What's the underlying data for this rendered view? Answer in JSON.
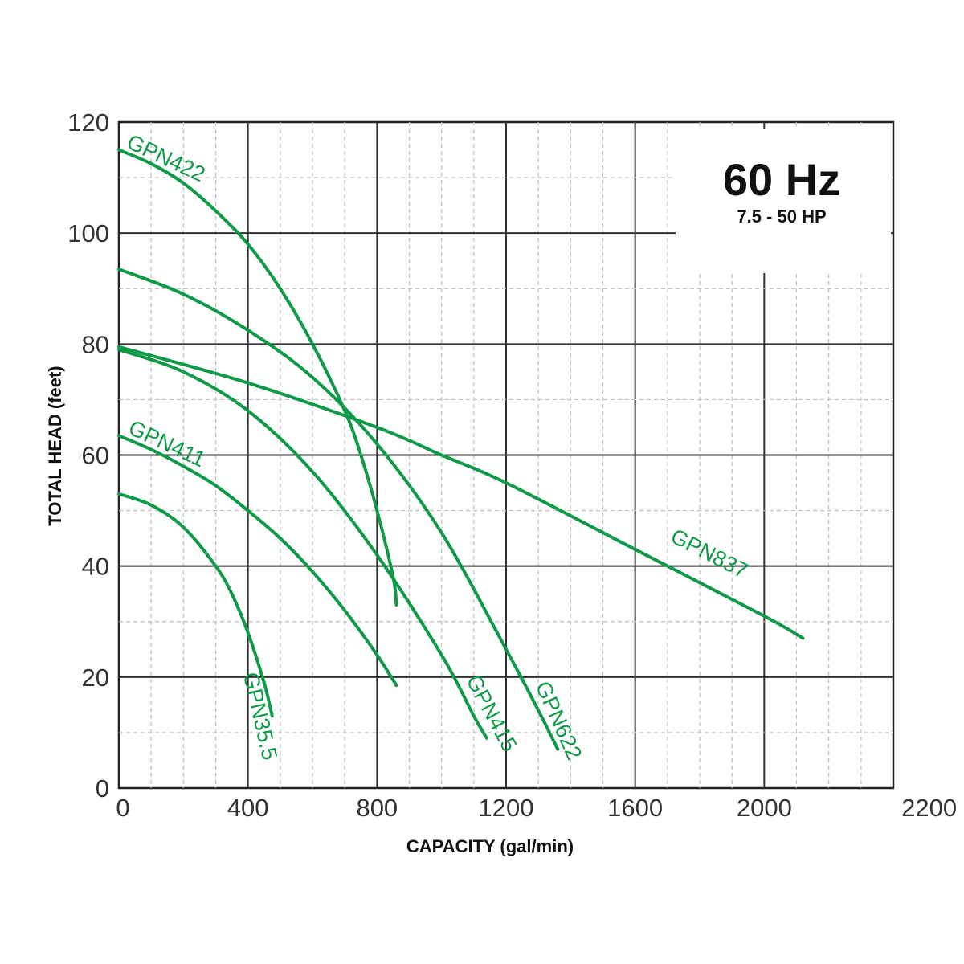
{
  "chart_data": {
    "type": "line",
    "title": "",
    "xlabel": "CAPACITY (gal/min)",
    "ylabel": "TOTAL HEAD (feet)",
    "xlim": [
      0,
      2400
    ],
    "ylim": [
      0,
      120
    ],
    "x_ticks": [
      0,
      400,
      800,
      1200,
      1600,
      2000,
      2200
    ],
    "y_ticks": [
      0,
      20,
      40,
      60,
      80,
      100,
      120
    ],
    "grid": true,
    "badge": {
      "frequency": "60 Hz",
      "power_range": "7.5 - 50 HP"
    },
    "line_color": "#0f9a48",
    "series": [
      {
        "name": "GPN35.5",
        "x": [
          0,
          100,
          200,
          300,
          350,
          400,
          450,
          475
        ],
        "y": [
          53,
          51,
          47,
          40,
          35,
          28,
          19,
          13
        ]
      },
      {
        "name": "GPN411",
        "x": [
          0,
          100,
          200,
          300,
          400,
          500,
          600,
          700,
          800,
          860
        ],
        "y": [
          63.5,
          61,
          58,
          54.5,
          50,
          45,
          39,
          32,
          24,
          18.5
        ]
      },
      {
        "name": "GPN415",
        "x": [
          0,
          200,
          400,
          600,
          800,
          1000,
          1100,
          1140
        ],
        "y": [
          79,
          75,
          68,
          57,
          42,
          24,
          13,
          9
        ]
      },
      {
        "name": "GPN422",
        "x": [
          0,
          100,
          200,
          300,
          400,
          500,
          600,
          700,
          750,
          800,
          850,
          860
        ],
        "y": [
          115,
          112.5,
          109,
          104,
          98,
          90,
          80,
          68,
          60,
          50,
          38,
          33
        ]
      },
      {
        "name": "GPN622",
        "x": [
          0,
          200,
          400,
          600,
          800,
          1000,
          1200,
          1300,
          1360
        ],
        "y": [
          93.5,
          89,
          82.5,
          74,
          62,
          46,
          25,
          14,
          7
        ]
      },
      {
        "name": "GPN837",
        "x": [
          0,
          400,
          800,
          1000,
          1200,
          1600,
          2000,
          2120
        ],
        "y": [
          79.5,
          73,
          65,
          60,
          55,
          43,
          31,
          27
        ]
      }
    ],
    "annotations": [
      {
        "text": "GPN422",
        "series": "GPN422"
      },
      {
        "text": "GPN411",
        "series": "GPN411"
      },
      {
        "text": "GPN35.5",
        "series": "GPN35.5"
      },
      {
        "text": "GPN415",
        "series": "GPN415"
      },
      {
        "text": "GPN622",
        "series": "GPN622"
      },
      {
        "text": "GPN837",
        "series": "GPN837"
      }
    ]
  }
}
